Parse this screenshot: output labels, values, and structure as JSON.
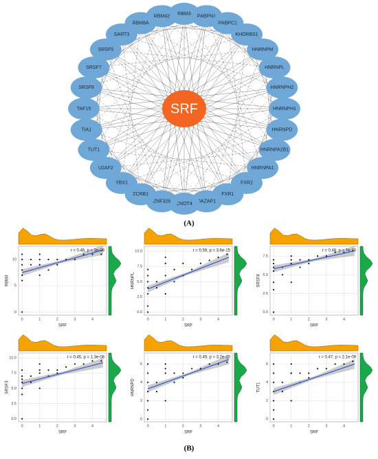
{
  "network": {
    "center": "SRF",
    "nodes": [
      "RBM3",
      "PABPN1",
      "PABPC1",
      "KHDRBS1",
      "HNRNPM",
      "HNRNPL",
      "HNRNPH2",
      "HNRNPH1",
      "HNRNPD",
      "HNRNPA2B1",
      "HNRNPA1",
      "FXR2",
      "FXR1",
      "DAZAP1",
      "CNOT4",
      "ZNF326",
      "ZCRB1",
      "YBX1",
      "U2AF2",
      "TUT1",
      "TIA1",
      "TAF15",
      "SRSF8",
      "SRSF7",
      "SRSF5",
      "SART3",
      "RBM8A",
      "RBM42"
    ]
  },
  "label_a": "(A)",
  "label_b": "(B)",
  "chart_data": [
    {
      "type": "scatter",
      "x_label": "SRF",
      "y_label": "RBM3",
      "annotation": "r = 0.46, p = 3e-09",
      "color": "#111111",
      "x": [
        0,
        0,
        0,
        0,
        0,
        0,
        0.5,
        0.5,
        1,
        1,
        1,
        1,
        1.5,
        1.5,
        2,
        2,
        2.5,
        3,
        3.5,
        4,
        4.5,
        0
      ],
      "values": [
        9,
        10,
        11,
        8,
        7,
        6,
        10,
        9,
        10,
        9,
        7,
        11,
        8,
        10,
        10,
        9,
        10,
        10,
        11,
        11,
        11,
        0
      ],
      "trend": {
        "x": [
          0,
          4.6
        ],
        "y": [
          7.5,
          11.8
        ],
        "color": "#3a5fcd"
      },
      "xlim": [
        -0.2,
        4.8
      ],
      "ylim": [
        -0.6,
        12.5
      ],
      "xticks": [
        0,
        1,
        2,
        3,
        4
      ],
      "yticks": [
        0,
        5,
        10
      ],
      "grid": true
    },
    {
      "type": "scatter",
      "x_label": "SRF",
      "y_label": "HNRNPL",
      "annotation": "r = 0.59, p = 3.6e-15",
      "color": "#111111",
      "x": [
        0,
        0,
        0,
        0,
        0,
        0,
        0.5,
        0.5,
        1,
        1,
        1,
        1,
        1.5,
        1.5,
        2,
        2,
        2.5,
        3,
        3.5,
        4,
        4.5,
        0
      ],
      "values": [
        5,
        4,
        3,
        6,
        7,
        1,
        5,
        4,
        6,
        8,
        3,
        9,
        5,
        7,
        6,
        8,
        7,
        8,
        8.5,
        9,
        9.5,
        0
      ],
      "trend": {
        "x": [
          0,
          4.6
        ],
        "y": [
          3.8,
          9
        ],
        "color": "#3a5fcd"
      },
      "xlim": [
        -0.2,
        4.8
      ],
      "ylim": [
        -0.5,
        10.8
      ],
      "xticks": [
        0,
        1,
        2,
        3,
        4
      ],
      "yticks": [
        {
          "value": 0,
          "label": "0.0"
        },
        {
          "value": 2.5,
          "label": "2.5"
        },
        {
          "value": 5,
          "label": "5.0"
        },
        {
          "value": 7.5,
          "label": "7.5"
        },
        {
          "value": 10,
          "label": "10.0"
        }
      ],
      "grid": true
    },
    {
      "type": "scatter",
      "x_label": "SRF",
      "y_label": "SRSF8",
      "annotation": "r = 0.48, p = 7e-10",
      "color": "#111111",
      "x": [
        0,
        0,
        0,
        0,
        0,
        0,
        0.5,
        0.5,
        1,
        1,
        1,
        1,
        1.5,
        1.5,
        2,
        2,
        2.5,
        3,
        3.5,
        4,
        4.5,
        0
      ],
      "values": [
        5.5,
        6,
        4,
        7,
        3,
        6.5,
        6,
        5,
        6.5,
        7,
        4,
        7.5,
        6,
        7,
        7,
        6.5,
        7.5,
        7.5,
        8,
        8,
        8.2,
        0
      ],
      "trend": {
        "x": [
          0,
          4.6
        ],
        "y": [
          5.8,
          8.2
        ],
        "color": "#3a5fcd"
      },
      "xlim": [
        -0.2,
        4.8
      ],
      "ylim": [
        -0.4,
        8.8
      ],
      "xticks": [
        0,
        1,
        2,
        3,
        4
      ],
      "yticks": [
        {
          "value": 0,
          "label": "0.0"
        },
        {
          "value": 2.5,
          "label": "2.5"
        },
        {
          "value": 5,
          "label": "5.0"
        },
        {
          "value": 7.5,
          "label": "7.5"
        }
      ],
      "grid": true
    },
    {
      "type": "scatter",
      "x_label": "SRF",
      "y_label": "SRSF3",
      "annotation": "r = 0.45, p = 1.3e-08",
      "color": "#111111",
      "x": [
        0,
        0,
        0,
        0,
        0,
        0,
        0.5,
        0.5,
        1,
        1,
        1,
        1,
        1.5,
        1.5,
        2,
        2,
        2.5,
        3,
        3.5,
        4,
        4.5,
        0
      ],
      "values": [
        6,
        7,
        5,
        8,
        4,
        6.5,
        7,
        6,
        7.5,
        8,
        5,
        9,
        7,
        8,
        7.5,
        8,
        8.5,
        9,
        9,
        9.5,
        9.5,
        0
      ],
      "trend": {
        "x": [
          0,
          4.6
        ],
        "y": [
          5.8,
          9.2
        ],
        "color": "#3a5fcd"
      },
      "xlim": [
        -0.2,
        4.8
      ],
      "ylim": [
        -0.5,
        10.8
      ],
      "xticks": [
        0,
        1,
        2,
        3,
        4
      ],
      "yticks": [
        {
          "value": 0,
          "label": "0.0"
        },
        {
          "value": 2.5,
          "label": "2.5"
        },
        {
          "value": 5,
          "label": "5.0"
        },
        {
          "value": 7.5,
          "label": "7.5"
        },
        {
          "value": 10,
          "label": "10.0"
        }
      ],
      "grid": true
    },
    {
      "type": "scatter",
      "x_label": "SRF",
      "y_label": "HNRNPD",
      "annotation": "r = 0.49, p = 3.2e-10",
      "color": "#111111",
      "x": [
        0,
        0,
        0,
        0,
        0,
        0,
        0.5,
        0.5,
        1,
        1,
        1,
        1,
        1.5,
        1.5,
        2,
        2,
        2.5,
        3,
        3.5,
        4,
        4.5,
        0
      ],
      "values": [
        3,
        4,
        1,
        5,
        2,
        6,
        4,
        3,
        5,
        6,
        2,
        5.5,
        4,
        5,
        5,
        4.5,
        5.5,
        5.5,
        6,
        6,
        6.2,
        0
      ],
      "trend": {
        "x": [
          0,
          4.6
        ],
        "y": [
          3.3,
          6.5
        ],
        "color": "#3a5fcd"
      },
      "xlim": [
        -0.2,
        4.8
      ],
      "ylim": [
        -0.3,
        7.2
      ],
      "xticks": [
        0,
        1,
        2,
        3,
        4
      ],
      "yticks": [
        0,
        2,
        4,
        6
      ],
      "grid": true
    },
    {
      "type": "scatter",
      "x_label": "SRF",
      "y_label": "TUT1",
      "annotation": "r = 0.47, p = 2.1e-09",
      "color": "#111111",
      "x": [
        0,
        0,
        0,
        0,
        0,
        0,
        0.5,
        0.5,
        1,
        1,
        1,
        1,
        1.5,
        1.5,
        2,
        2,
        2.5,
        3,
        3.5,
        4,
        4.5,
        0
      ],
      "values": [
        3,
        4,
        2,
        5,
        1,
        6,
        4,
        3,
        5,
        6,
        2,
        5,
        4,
        5,
        4.5,
        5,
        5.5,
        5.5,
        6,
        6,
        6.3,
        0
      ],
      "trend": {
        "x": [
          0,
          4.6
        ],
        "y": [
          3,
          6
        ],
        "color": "#3a5fcd"
      },
      "xlim": [
        -0.2,
        4.8
      ],
      "ylim": [
        -0.3,
        7.2
      ],
      "xticks": [
        0,
        1,
        2,
        3,
        4
      ],
      "yticks": [
        0,
        2,
        4,
        6
      ],
      "grid": true
    }
  ]
}
